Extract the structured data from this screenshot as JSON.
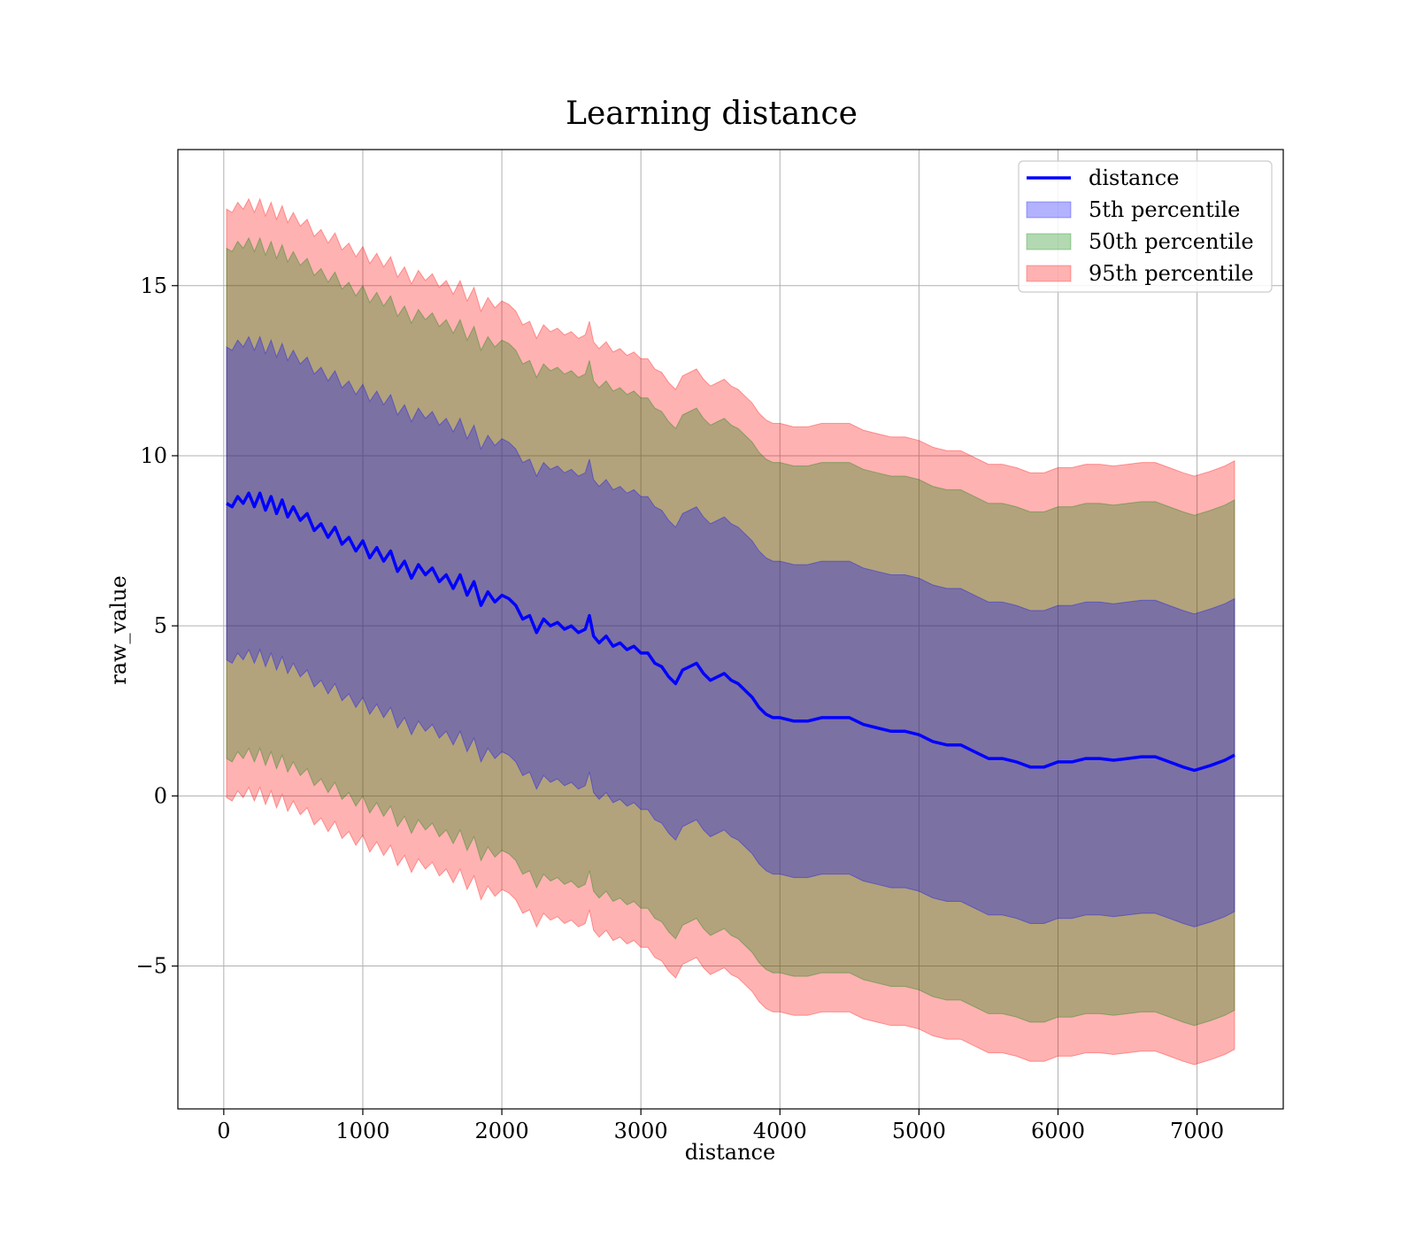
{
  "chart_data": {
    "type": "line",
    "title": "Learning distance",
    "xlabel": "distance",
    "ylabel": "raw_value",
    "xlim": [
      -330,
      7620
    ],
    "ylim": [
      -9.2,
      19.0
    ],
    "x_ticks": [
      0,
      1000,
      2000,
      3000,
      4000,
      5000,
      6000,
      7000
    ],
    "x_tick_labels": [
      "0",
      "1000",
      "2000",
      "3000",
      "4000",
      "5000",
      "6000",
      "7000"
    ],
    "y_ticks": [
      -5,
      0,
      5,
      10,
      15
    ],
    "y_tick_labels": [
      "−5",
      "0",
      "5",
      "10",
      "15"
    ],
    "grid": true,
    "legend_position": "top-right",
    "legend": {
      "line": "distance",
      "band_5": "5th percentile",
      "band_50": "50th percentile",
      "band_95": "95th percentile"
    },
    "colors": {
      "line": "#0000ff",
      "band_5": "#0000ff",
      "band_50": "#008000",
      "band_95": "#ff0000"
    },
    "band_half_widths": {
      "5th percentile": 4.6,
      "50th percentile": 7.5,
      "95th percentile": 8.65
    },
    "series": [
      {
        "name": "distance",
        "x": [
          20,
          60,
          100,
          140,
          180,
          220,
          260,
          300,
          340,
          380,
          420,
          460,
          500,
          550,
          600,
          650,
          700,
          750,
          800,
          850,
          900,
          950,
          1000,
          1050,
          1100,
          1150,
          1200,
          1250,
          1300,
          1350,
          1400,
          1450,
          1500,
          1550,
          1600,
          1650,
          1700,
          1750,
          1800,
          1850,
          1900,
          1950,
          2000,
          2050,
          2100,
          2150,
          2200,
          2250,
          2300,
          2350,
          2400,
          2450,
          2500,
          2550,
          2600,
          2630,
          2660,
          2700,
          2750,
          2800,
          2850,
          2900,
          2950,
          3000,
          3050,
          3100,
          3150,
          3200,
          3250,
          3300,
          3350,
          3400,
          3450,
          3500,
          3550,
          3600,
          3650,
          3700,
          3750,
          3800,
          3850,
          3900,
          3950,
          4000,
          4100,
          4200,
          4300,
          4400,
          4500,
          4600,
          4700,
          4800,
          4900,
          5000,
          5100,
          5200,
          5300,
          5400,
          5500,
          5600,
          5700,
          5800,
          5900,
          6000,
          6100,
          6200,
          6300,
          6400,
          6500,
          6600,
          6700,
          6800,
          6900,
          6980,
          7100,
          7200,
          7270
        ],
        "y": [
          8.6,
          8.5,
          8.8,
          8.6,
          8.9,
          8.5,
          8.9,
          8.4,
          8.8,
          8.3,
          8.7,
          8.2,
          8.5,
          8.1,
          8.3,
          7.8,
          8.0,
          7.6,
          7.9,
          7.4,
          7.6,
          7.2,
          7.5,
          7.0,
          7.3,
          6.9,
          7.2,
          6.6,
          6.9,
          6.4,
          6.8,
          6.5,
          6.7,
          6.3,
          6.5,
          6.1,
          6.5,
          5.9,
          6.3,
          5.6,
          6.0,
          5.7,
          5.9,
          5.8,
          5.6,
          5.2,
          5.3,
          4.8,
          5.2,
          5.0,
          5.1,
          4.9,
          5.0,
          4.8,
          4.9,
          5.3,
          4.7,
          4.5,
          4.7,
          4.4,
          4.5,
          4.3,
          4.4,
          4.2,
          4.2,
          3.9,
          3.8,
          3.5,
          3.3,
          3.7,
          3.8,
          3.9,
          3.6,
          3.4,
          3.5,
          3.6,
          3.4,
          3.3,
          3.1,
          2.9,
          2.6,
          2.4,
          2.3,
          2.3,
          2.2,
          2.2,
          2.3,
          2.3,
          2.3,
          2.1,
          2.0,
          1.9,
          1.9,
          1.8,
          1.6,
          1.5,
          1.5,
          1.3,
          1.1,
          1.1,
          1.0,
          0.85,
          0.85,
          1.0,
          1.0,
          1.1,
          1.1,
          1.05,
          1.1,
          1.15,
          1.15,
          1.0,
          0.85,
          0.75,
          0.9,
          1.05,
          1.2
        ]
      }
    ]
  }
}
